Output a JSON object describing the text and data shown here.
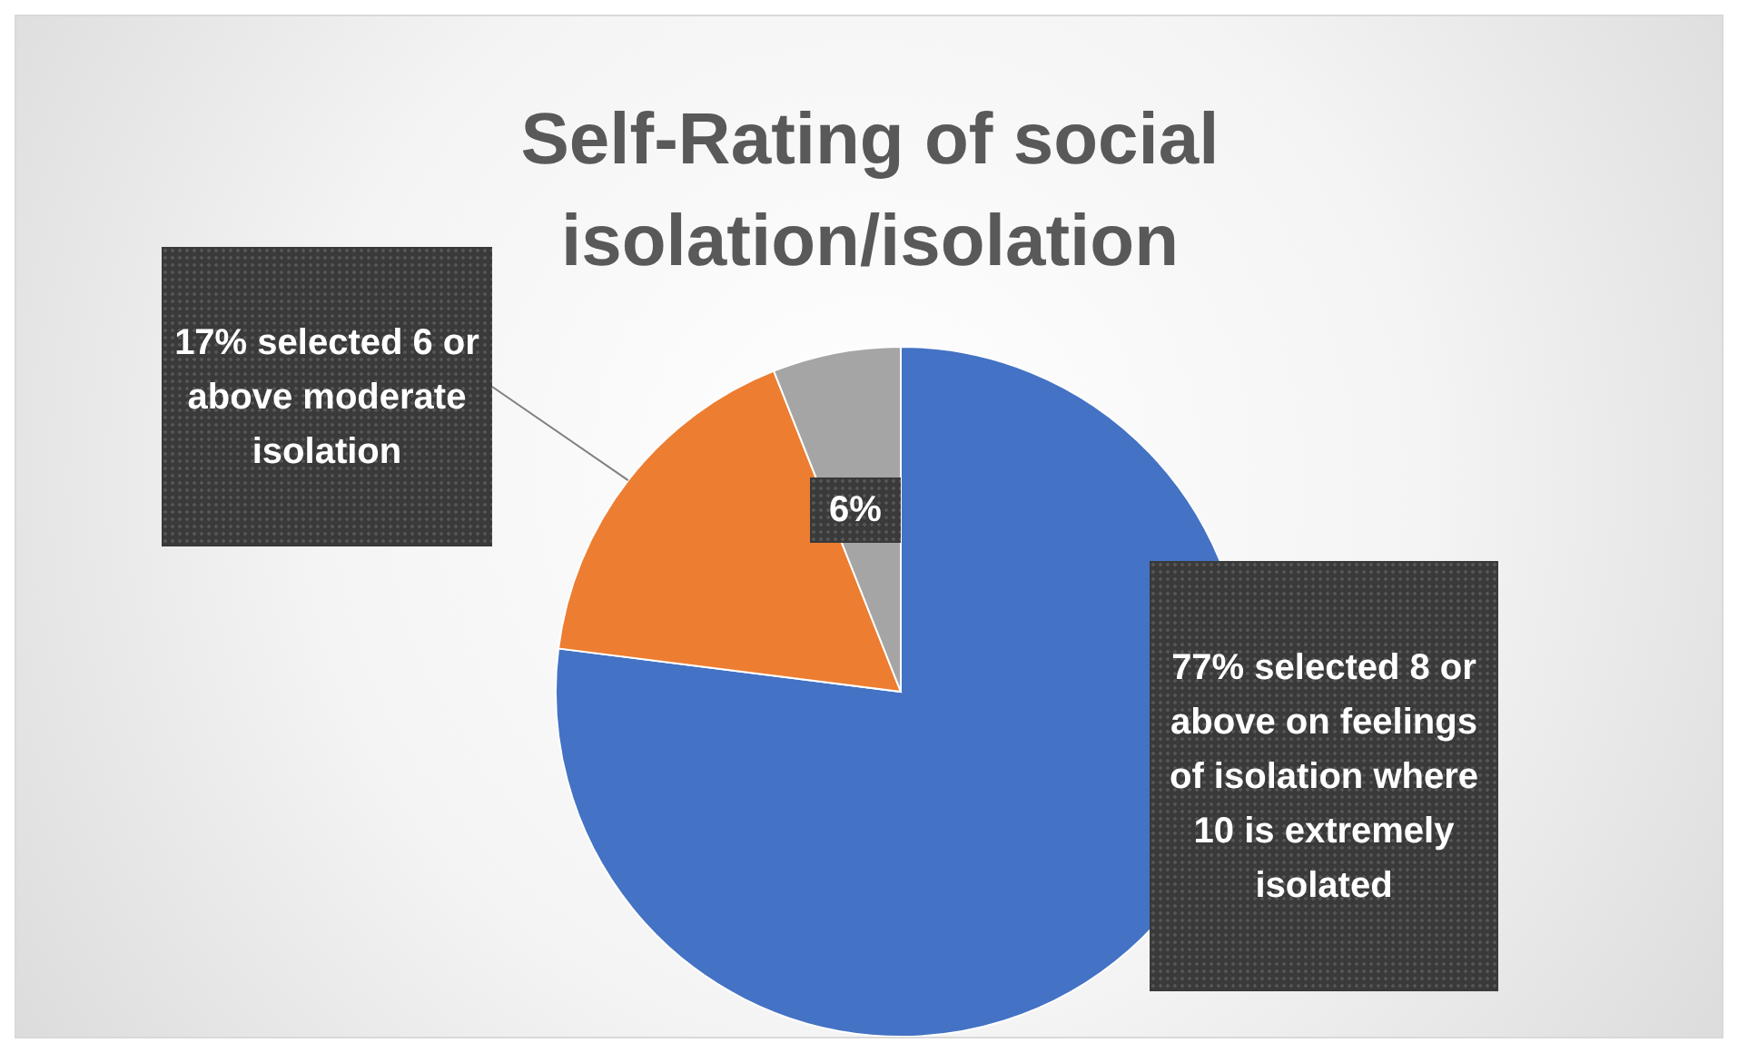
{
  "chart_data": {
    "type": "pie",
    "title": "Self-Rating of social isolation/isolation",
    "categories": [
      null,
      null,
      null
    ],
    "values": [
      77,
      17,
      6
    ],
    "colors": [
      "#4472c4",
      "#ed7d31",
      "#a5a5a5"
    ],
    "value_labels": [
      "77% selected 8 or above on feelings of isolation where 10 is extremely isolated",
      "17% selected 6 or above moderate isolation",
      "6%"
    ],
    "legend": false
  }
}
